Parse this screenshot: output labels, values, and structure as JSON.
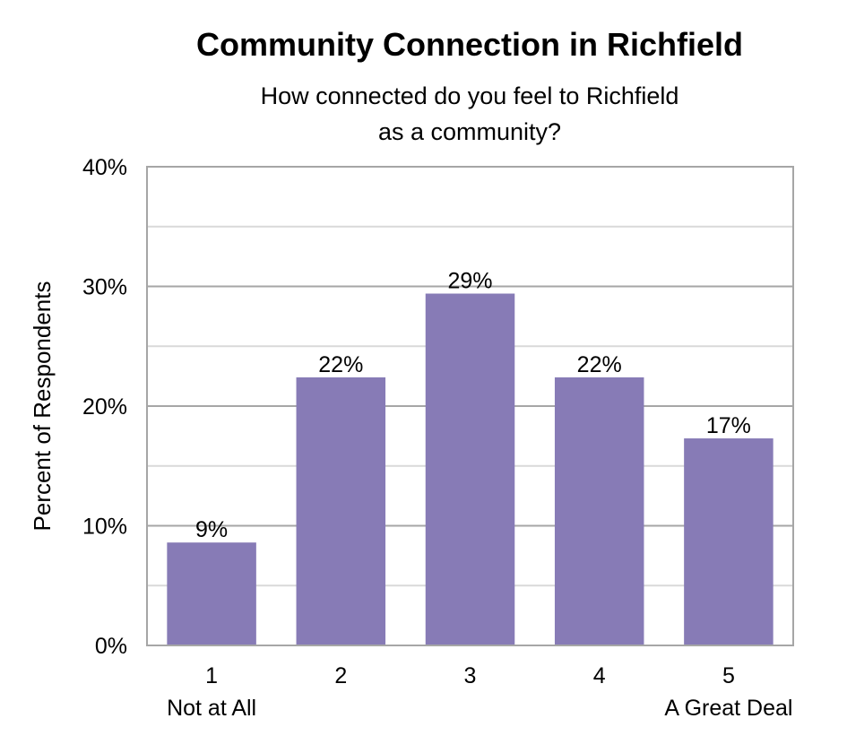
{
  "chart_data": {
    "type": "bar",
    "title": "Community Connection in Richfield",
    "subtitle_lines": [
      "How connected do you feel to Richfield",
      "as a community?"
    ],
    "ylabel": "Percent of Respondents",
    "xlabel": "",
    "categories": [
      "1",
      "2",
      "3",
      "4",
      "5"
    ],
    "category_sublabels": [
      "Not at All",
      "",
      "",
      "",
      "A Great Deal"
    ],
    "values": [
      8.6,
      22.4,
      29.4,
      22.4,
      17.3
    ],
    "data_labels": [
      "9%",
      "22%",
      "29%",
      "22%",
      "17%"
    ],
    "ylim": [
      0,
      40
    ],
    "yticks": [
      0,
      10,
      20,
      30,
      40
    ],
    "ytick_labels": [
      "0%",
      "10%",
      "20%",
      "30%",
      "40%"
    ],
    "grid": true,
    "colors": {
      "bar": "#877BB6",
      "grid_major": "#A6A6A6",
      "grid_minor": "#D9D9D9",
      "frame": "#A6A6A6"
    }
  }
}
